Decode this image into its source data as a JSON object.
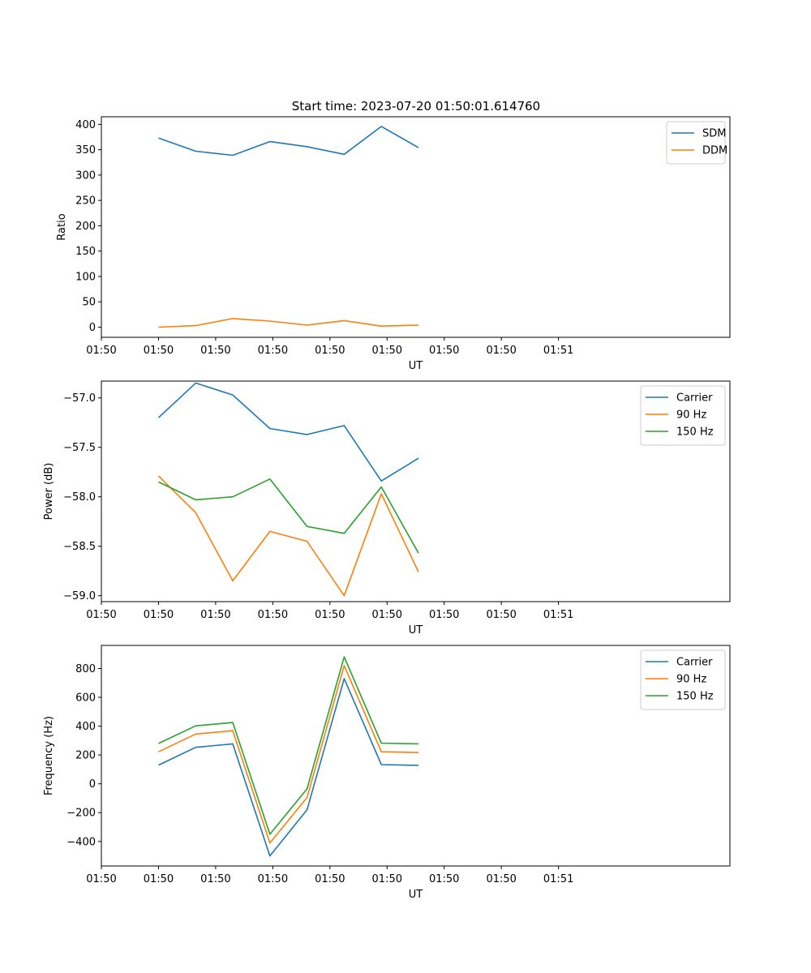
{
  "colors": {
    "blue": "#1f77b4",
    "orange": "#ff7f0e",
    "green": "#2ca02c"
  },
  "chart_data": [
    {
      "type": "line",
      "title": "Start time: 2023-07-20 01:50:01.614760",
      "xlabel": "UT",
      "ylabel": "Ratio",
      "xlim": [
        -0.1,
        1.0
      ],
      "ylim": [
        -20,
        415
      ],
      "x_ticks": [
        -0.1,
        0.0,
        0.1,
        0.2,
        0.3,
        0.4,
        0.5,
        0.6,
        0.7
      ],
      "x_tick_labels": [
        "01:50",
        "01:50",
        "01:50",
        "01:50",
        "01:50",
        "01:50",
        "01:50",
        "01:50",
        "01:51"
      ],
      "y_ticks": [
        0,
        50,
        100,
        150,
        200,
        250,
        300,
        350,
        400
      ],
      "y_tick_labels": [
        "0",
        "50",
        "100",
        "150",
        "200",
        "250",
        "300",
        "350",
        "400"
      ],
      "x": [
        0.0,
        0.065,
        0.13,
        0.195,
        0.26,
        0.325,
        0.39,
        0.455
      ],
      "legend": "top-right",
      "series": [
        {
          "name": "SDM",
          "color": "#1f77b4",
          "values": [
            373,
            347,
            339,
            366,
            356,
            341,
            396,
            354
          ]
        },
        {
          "name": "DDM",
          "color": "#ff7f0e",
          "values": [
            0,
            3,
            17,
            12,
            4,
            13,
            2,
            4
          ]
        }
      ]
    },
    {
      "type": "line",
      "title": "",
      "xlabel": "UT",
      "ylabel": "Power (dB)",
      "xlim": [
        -0.1,
        1.0
      ],
      "ylim": [
        -59.06,
        -56.83
      ],
      "x_ticks": [
        -0.1,
        0.0,
        0.1,
        0.2,
        0.3,
        0.4,
        0.5,
        0.6,
        0.7
      ],
      "x_tick_labels": [
        "01:50",
        "01:50",
        "01:50",
        "01:50",
        "01:50",
        "01:50",
        "01:50",
        "01:50",
        "01:51"
      ],
      "y_ticks": [
        -57.0,
        -57.5,
        -58.0,
        -58.5,
        -59.0
      ],
      "y_tick_labels": [
        "−57.0",
        "−57.5",
        "−58.0",
        "−58.5",
        "−59.0"
      ],
      "x": [
        0.0,
        0.065,
        0.13,
        0.195,
        0.26,
        0.325,
        0.39,
        0.455
      ],
      "legend": "top-right",
      "series": [
        {
          "name": "Carrier",
          "color": "#1f77b4",
          "values": [
            -57.2,
            -56.85,
            -56.97,
            -57.31,
            -57.37,
            -57.28,
            -57.84,
            -57.61
          ]
        },
        {
          "name": "90 Hz",
          "color": "#ff7f0e",
          "values": [
            -57.79,
            -58.16,
            -58.85,
            -58.35,
            -58.45,
            -59.0,
            -57.97,
            -58.76
          ]
        },
        {
          "name": "150 Hz",
          "color": "#2ca02c",
          "values": [
            -57.85,
            -58.03,
            -58.0,
            -57.82,
            -58.3,
            -58.37,
            -57.9,
            -58.57
          ]
        }
      ]
    },
    {
      "type": "line",
      "title": "",
      "xlabel": "UT",
      "ylabel": "Frequency (Hz)",
      "xlim": [
        -0.1,
        1.0
      ],
      "ylim": [
        -570,
        960
      ],
      "x_ticks": [
        -0.1,
        0.0,
        0.1,
        0.2,
        0.3,
        0.4,
        0.5,
        0.6,
        0.7
      ],
      "x_tick_labels": [
        "01:50",
        "01:50",
        "01:50",
        "01:50",
        "01:50",
        "01:50",
        "01:50",
        "01:50",
        "01:51"
      ],
      "y_ticks": [
        -400,
        -200,
        0,
        200,
        400,
        600,
        800
      ],
      "y_tick_labels": [
        "−400",
        "−200",
        "0",
        "200",
        "400",
        "600",
        "800"
      ],
      "x": [
        0.0,
        0.065,
        0.13,
        0.195,
        0.26,
        0.325,
        0.39,
        0.455
      ],
      "legend": "top-right",
      "series": [
        {
          "name": "Carrier",
          "color": "#1f77b4",
          "values": [
            130,
            253,
            277,
            -500,
            -180,
            730,
            133,
            128
          ]
        },
        {
          "name": "90 Hz",
          "color": "#ff7f0e",
          "values": [
            222,
            345,
            368,
            -410,
            -95,
            820,
            222,
            217
          ]
        },
        {
          "name": "150 Hz",
          "color": "#2ca02c",
          "values": [
            280,
            402,
            425,
            -350,
            -35,
            880,
            282,
            277
          ]
        }
      ]
    }
  ]
}
